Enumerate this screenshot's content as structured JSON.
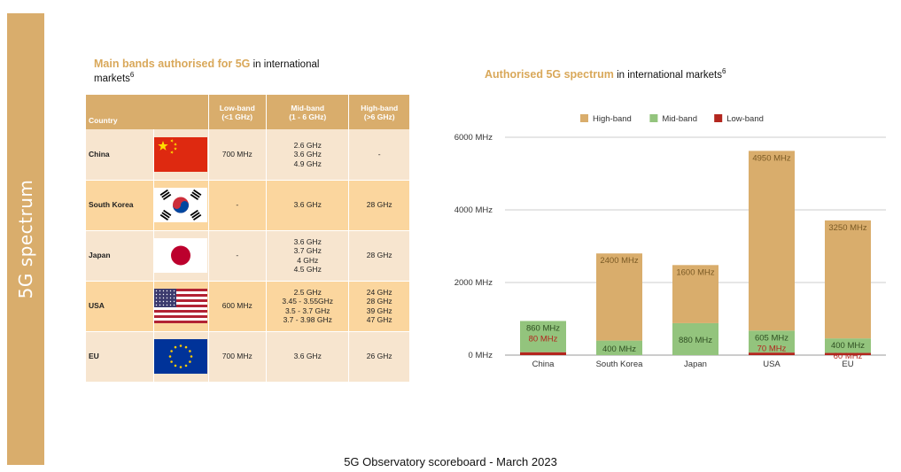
{
  "sidebar": {
    "title": "5G spectrum"
  },
  "left_title": {
    "accent": "Main bands authorised for 5G",
    "rest": " in international markets",
    "sup": "6"
  },
  "table": {
    "headers": {
      "country": "Country",
      "low": [
        "Low-band",
        "(<1 GHz)"
      ],
      "mid": [
        "Mid-band",
        "(1 - 6 GHz)"
      ],
      "high": [
        "High-band",
        "(>6 GHz)"
      ]
    },
    "rows": [
      {
        "country": "China",
        "flag": "china-flag",
        "low": [
          "700 MHz"
        ],
        "mid": [
          "2.6 GHz",
          "3.6 GHz",
          "4.9 GHz"
        ],
        "high": [
          "-"
        ]
      },
      {
        "country": "South Korea",
        "flag": "south-korea-flag",
        "low": [
          "-"
        ],
        "mid": [
          "3.6 GHz"
        ],
        "high": [
          "28 GHz"
        ]
      },
      {
        "country": "Japan",
        "flag": "japan-flag",
        "low": [
          "-"
        ],
        "mid": [
          "3.6 GHz",
          "3.7 GHz",
          "4 GHz",
          "4.5 GHz"
        ],
        "high": [
          "28 GHz"
        ]
      },
      {
        "country": "USA",
        "flag": "usa-flag",
        "low": [
          "600 MHz"
        ],
        "mid": [
          "2.5 GHz",
          "3.45 - 3.55GHz",
          "3.5 - 3.7 GHz",
          "3.7 - 3.98 GHz"
        ],
        "high": [
          "24 GHz",
          "28 GHz",
          "39 GHz",
          "47 GHz"
        ]
      },
      {
        "country": "EU",
        "flag": "eu-flag",
        "low": [
          "700 MHz"
        ],
        "mid": [
          "3.6 GHz"
        ],
        "high": [
          "26 GHz"
        ]
      }
    ]
  },
  "right_title": {
    "accent": "Authorised 5G spectrum",
    "rest": " in international markets",
    "sup": "6"
  },
  "chart_data": {
    "type": "bar",
    "stacked": true,
    "title": "Authorised 5G spectrum in international markets",
    "categories": [
      "China",
      "South Korea",
      "Japan",
      "USA",
      "EU"
    ],
    "series": [
      {
        "name": "Low-band",
        "color": "#b3261e",
        "values": [
          80,
          0,
          0,
          70,
          60
        ],
        "labels": [
          "80 MHz",
          "",
          "",
          "70 MHz",
          "60 MHz"
        ]
      },
      {
        "name": "Mid-band",
        "color": "#93c47d",
        "values": [
          860,
          400,
          880,
          605,
          400
        ],
        "labels": [
          "860 MHz",
          "400 MHz",
          "880 MHz",
          "605 MHz",
          "400 MHz"
        ]
      },
      {
        "name": "High-band",
        "color": "#d9ad6c",
        "values": [
          0,
          2400,
          1600,
          4950,
          3250
        ],
        "labels": [
          "",
          "2400 MHz",
          "1600 MHz",
          "4950 MHz",
          "3250 MHz"
        ]
      }
    ],
    "legend_order": [
      "High-band",
      "Mid-band",
      "Low-band"
    ],
    "legend_position": "top",
    "y_ticks": [
      "0 MHz",
      "2000 MHz",
      "4000 MHz",
      "6000 MHz"
    ],
    "ylim": [
      0,
      6000
    ],
    "grid": true
  },
  "footer": "5G Observatory scoreboard - March 2023"
}
